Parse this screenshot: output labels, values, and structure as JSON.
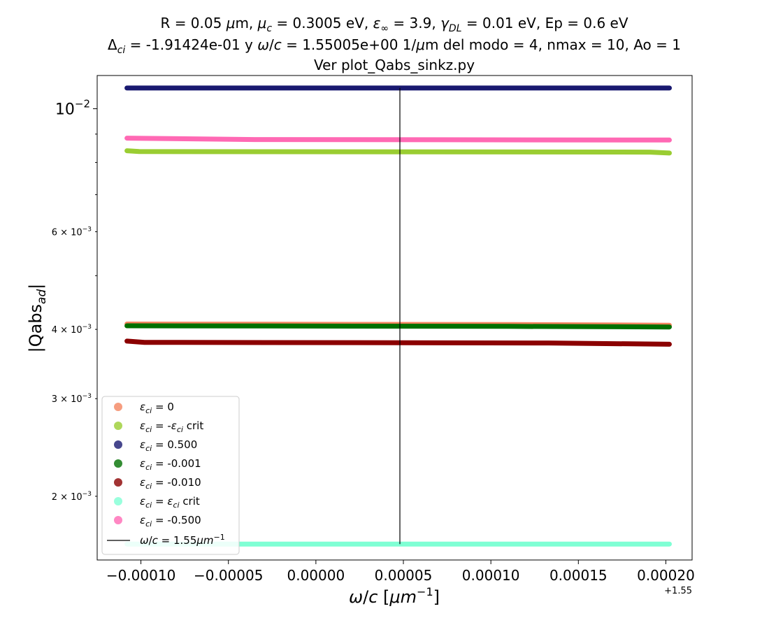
{
  "chart_data": {
    "type": "line",
    "title_lines": [
      "R = 0.05 μm, μ_c = 0.3005 eV, ε_∞ = 3.9, γ_DL = 0.01 eV, Ep = 0.6 eV",
      "Δ_ci = -1.91424e-01 y ω/c = 1.55005e+00 1/μm del modo = 4, nmax = 10, Ao = 1",
      "Ver plot_Qabs_sinkz.py"
    ],
    "xlabel": "ω/c [μm⁻¹]",
    "ylabel": "|Qabs_ad|",
    "x_offset_label": "+1.55",
    "x_offset": 1.55,
    "x_scale": "linear",
    "y_scale": "log",
    "xlim": [
      -0.000125,
      0.000215
    ],
    "ylim": [
      0.001535,
      0.01148
    ],
    "x_ticks": [
      -0.0001,
      -5e-05,
      0.0,
      5e-05,
      0.0001,
      0.00015,
      0.0002
    ],
    "x_tick_labels": [
      "−0.00010",
      "−0.00005",
      "0.00000",
      "0.00005",
      "0.00010",
      "0.00015",
      "0.00020"
    ],
    "y_major_ticks": [
      {
        "value": 0.01,
        "base": "10",
        "exp": "−2"
      }
    ],
    "y_minor_labeled_ticks": [
      {
        "value": 0.006,
        "mant": "6 × 10",
        "exp": "−3"
      },
      {
        "value": 0.004,
        "mant": "4 × 10",
        "exp": "−3"
      },
      {
        "value": 0.003,
        "mant": "3 × 10",
        "exp": "−3"
      },
      {
        "value": 0.002,
        "mant": "2 × 10",
        "exp": "−3"
      }
    ],
    "y_minor_unlabeled_ticks": [
      0.009,
      0.008,
      0.007,
      0.005
    ],
    "grid": false,
    "legend_position": "lower-left",
    "series": [
      {
        "name": "ε_ci = 0",
        "color": "#f4845f",
        "x": [
          -0.000108,
          0.000113,
          0.000202
        ],
        "y": [
          0.00409,
          0.00408,
          0.00407
        ]
      },
      {
        "name": "ε_ci = -ε_ci crit",
        "color": "#9acd32",
        "x": [
          -0.000108,
          -0.000101,
          0.000191,
          0.000202
        ],
        "y": [
          0.0084,
          0.00837,
          0.00835,
          0.00832
        ]
      },
      {
        "name": "ε_ci = 0.500",
        "color": "#191970",
        "x": [
          -0.000108,
          0.000202
        ],
        "y": [
          0.0109,
          0.0109
        ]
      },
      {
        "name": "ε_ci = -0.001",
        "color": "#007000",
        "x": [
          -0.000108,
          0.00011,
          0.000202
        ],
        "y": [
          0.00406,
          0.00405,
          0.00404
        ]
      },
      {
        "name": "ε_ci = -0.010",
        "color": "#8b0000",
        "x": [
          -0.000108,
          -9.8e-05,
          0.000133,
          0.000202
        ],
        "y": [
          0.00381,
          0.00379,
          0.00378,
          0.00376
        ]
      },
      {
        "name": "ε_ci = ε_ci crit",
        "color": "#7fffd4",
        "x": [
          -0.000108,
          0.000202
        ],
        "y": [
          0.00164,
          0.00164
        ]
      },
      {
        "name": "ε_ci = -0.500",
        "color": "#ff69b4",
        "x": [
          -0.000108,
          -3.5e-05,
          0.000202
        ],
        "y": [
          0.00885,
          0.0088,
          0.00878
        ]
      }
    ],
    "vline": {
      "name": "ω/c = 1.55μm⁻¹",
      "x": 4.8e-05,
      "y_range": [
        0.00164,
        0.0109
      ],
      "color": "#000000"
    },
    "legend_marker_alpha": 0.8
  }
}
